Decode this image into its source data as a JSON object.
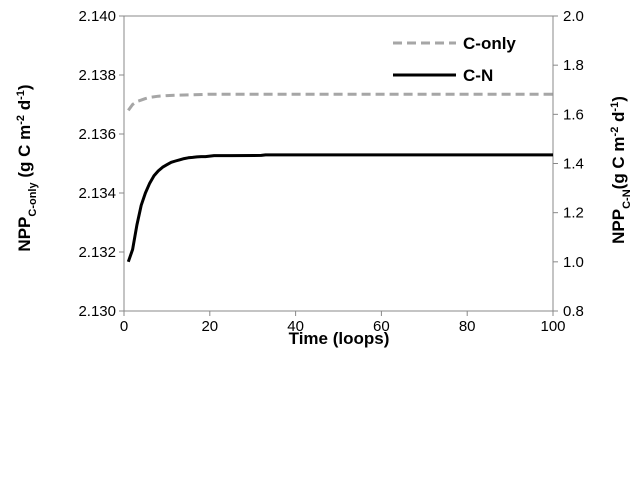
{
  "chart_data": {
    "type": "line",
    "xlabel": "Time (loops)",
    "ylabel_left": {
      "base": "NPP",
      "sub": "C-only",
      "unit_pre": " (g C m",
      "sup1": "-2",
      "unit_mid": " d",
      "sup2": "-1",
      "unit_post": ")"
    },
    "ylabel_right": {
      "base": "NPP",
      "sub": "C-N",
      "unit_pre": "(g C m",
      "sup1": "-2",
      "unit_mid": " d",
      "sup2": "-1",
      "unit_post": ")"
    },
    "xlim": [
      0,
      100
    ],
    "ylim_left": [
      2.13,
      2.14
    ],
    "ylim_right": [
      0.8,
      2.0
    ],
    "x_ticks": [
      0,
      20,
      40,
      60,
      80,
      100
    ],
    "x_tick_labels": [
      "0",
      "20",
      "40",
      "60",
      "80",
      "100"
    ],
    "y_left_ticks": [
      2.13,
      2.132,
      2.134,
      2.136,
      2.138,
      2.14
    ],
    "y_left_tick_labels": [
      "2.130",
      "2.132",
      "2.134",
      "2.136",
      "2.138",
      "2.140"
    ],
    "y_right_ticks": [
      0.8,
      1.0,
      1.2,
      1.4,
      1.6,
      1.8,
      2.0
    ],
    "y_right_tick_labels": [
      "0.8",
      "1.0",
      "1.2",
      "1.4",
      "1.6",
      "1.8",
      "2.0"
    ],
    "grid": false,
    "legend_position": "top-right",
    "series": [
      {
        "name": "C-only",
        "axis": "left",
        "color": "#a6a6a6",
        "dash": "dashed",
        "x": [
          1,
          2,
          3,
          4,
          5,
          6,
          8,
          10,
          13,
          16,
          20,
          30,
          50,
          100
        ],
        "y": [
          2.1368,
          2.137,
          2.1371,
          2.13715,
          2.1372,
          2.13724,
          2.13728,
          2.1373,
          2.13732,
          2.13733,
          2.13735,
          2.13735,
          2.13735,
          2.13735
        ]
      },
      {
        "name": "C-N",
        "axis": "right",
        "color": "#000000",
        "dash": "solid",
        "x": [
          1,
          2,
          3,
          4,
          5,
          6,
          7,
          8,
          9,
          10,
          11,
          12,
          13,
          14,
          15,
          16,
          17,
          18,
          19,
          20,
          21,
          22,
          25,
          32,
          33,
          100
        ],
        "y": [
          1.0,
          1.05,
          1.15,
          1.23,
          1.28,
          1.32,
          1.35,
          1.37,
          1.385,
          1.395,
          1.405,
          1.41,
          1.415,
          1.42,
          1.423,
          1.425,
          1.427,
          1.428,
          1.428,
          1.43,
          1.432,
          1.432,
          1.432,
          1.433,
          1.435,
          1.435
        ]
      }
    ]
  }
}
